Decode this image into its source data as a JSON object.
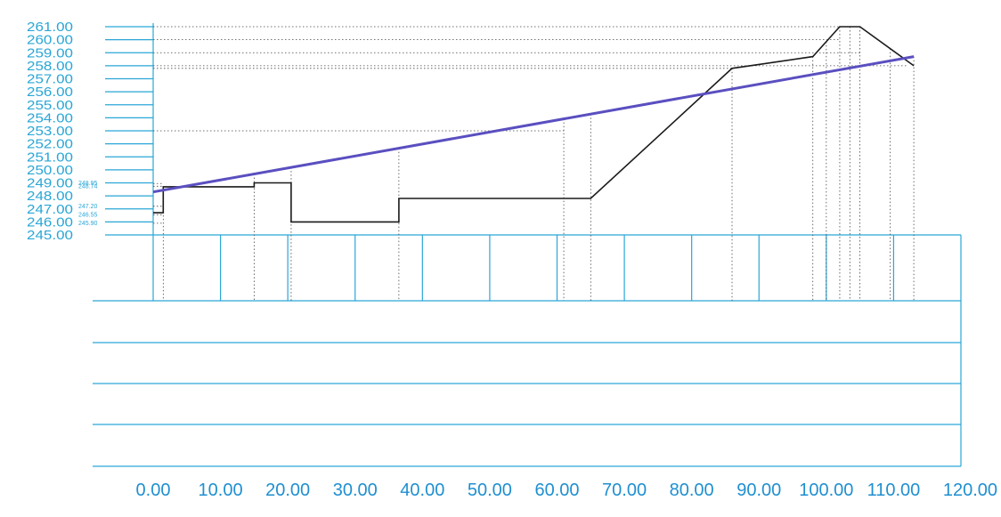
{
  "colors": {
    "frame": "#2aa6d6",
    "xlabels": "#1f8fd0",
    "design_line": "#5a4fc0",
    "ground_line": "#1a1a1a",
    "guide": "#444444"
  },
  "chart_data": {
    "type": "line",
    "title": "",
    "xlabel": "",
    "ylabel": "",
    "xlim": [
      0,
      120
    ],
    "ylim": [
      245,
      261
    ],
    "grid": false,
    "y_ticks": [
      "261.00",
      "260.00",
      "259.00",
      "258.00",
      "257.00",
      "256.00",
      "255.00",
      "254.00",
      "253.00",
      "252.00",
      "251.00",
      "250.00",
      "249.00",
      "248.00",
      "247.00",
      "246.00",
      "245.00"
    ],
    "x_ticks": [
      "0.00",
      "10.00",
      "20.00",
      "30.00",
      "40.00",
      "50.00",
      "60.00",
      "70.00",
      "80.00",
      "90.00",
      "100.00",
      "110.00",
      "120.00"
    ],
    "small_labels": [
      {
        "text": "248.95",
        "y": 248.95
      },
      {
        "text": "248.74",
        "y": 248.74
      },
      {
        "text": "247.20",
        "y": 247.2
      },
      {
        "text": "246.55",
        "y": 246.55
      },
      {
        "text": "245.90",
        "y": 245.9
      }
    ],
    "series": [
      {
        "style": "ground",
        "x": [
          0,
          1.5,
          1.5,
          15,
          15,
          20.5,
          20.5,
          36.5,
          36.5,
          65,
          86,
          90,
          98,
          102,
          105,
          113
        ],
        "y": [
          246.7,
          246.7,
          248.7,
          248.7,
          249.0,
          249.0,
          246.0,
          246.0,
          247.8,
          247.8,
          257.8,
          258.1,
          258.7,
          261.0,
          261.0,
          258.0
        ]
      },
      {
        "style": "design",
        "x": [
          0,
          113
        ],
        "y": [
          248.3,
          258.7
        ]
      }
    ],
    "guides_x": [
      1.5,
      15,
      20.5,
      36.5,
      61,
      65,
      86,
      98,
      100,
      102,
      103.5,
      105,
      109.5,
      113
    ],
    "guides_y": [
      261.0,
      260.0,
      259.0,
      258.0,
      257.8,
      253.0
    ]
  }
}
